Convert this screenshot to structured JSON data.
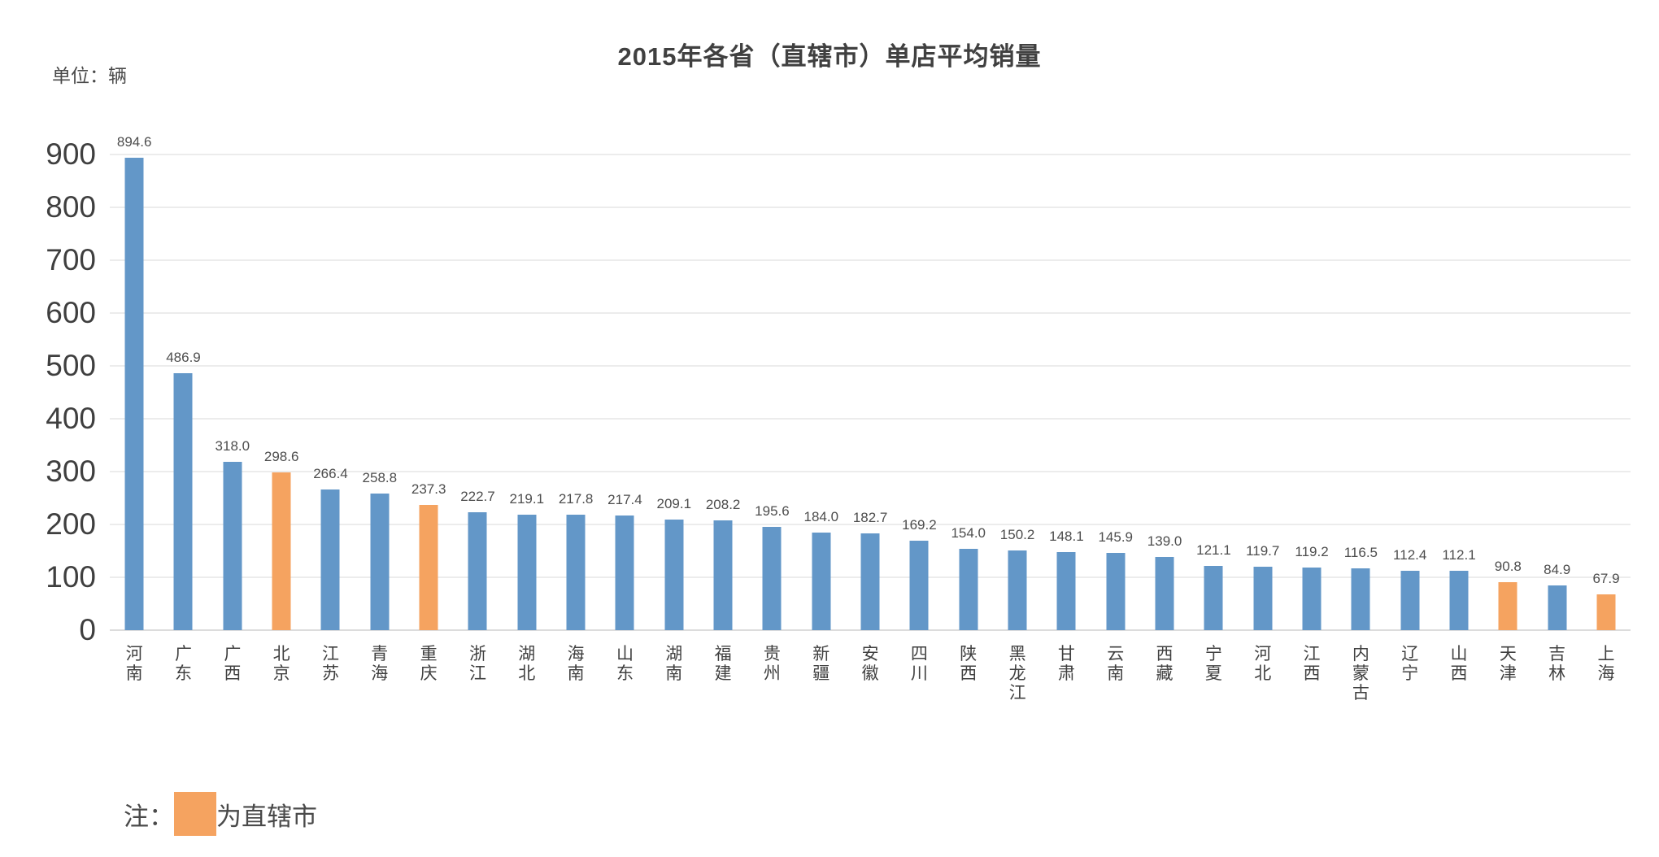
{
  "title": "2015年各省（直辖市）单店平均销量",
  "unit_label": "单位：辆",
  "note": {
    "prefix": "注：",
    "text": "为直辖市",
    "swatch_color": "#F5A360"
  },
  "colors": {
    "province_bar": "#6397C8",
    "municipality_bar": "#F5A360",
    "gridline": "#ececec",
    "baseline": "#dcdcdc",
    "text_dark": "#404040"
  },
  "chart_data": {
    "type": "bar",
    "title": "2015年各省（直辖市）单店平均销量",
    "xlabel": "",
    "ylabel": "单位：辆",
    "ylim": [
      0,
      900
    ],
    "y_ticks": [
      900,
      800,
      700,
      600,
      500,
      400,
      300,
      200,
      100,
      0
    ],
    "grid": true,
    "legend_position": "bottom-left",
    "categories": [
      "河南",
      "广东",
      "广西",
      "北京",
      "江苏",
      "青海",
      "重庆",
      "浙江",
      "湖北",
      "海南",
      "山东",
      "湖南",
      "福建",
      "贵州",
      "新疆",
      "安徽",
      "四川",
      "陕西",
      "黑龙江",
      "甘肃",
      "云南",
      "西藏",
      "宁夏",
      "河北",
      "江西",
      "内蒙古",
      "辽宁",
      "山西",
      "天津",
      "吉林",
      "上海"
    ],
    "values": [
      894.6,
      486.9,
      318.0,
      298.6,
      266.4,
      258.8,
      237.3,
      222.7,
      219.1,
      217.8,
      217.4,
      209.1,
      208.2,
      195.6,
      184.0,
      182.7,
      169.2,
      154.0,
      150.2,
      148.1,
      145.9,
      139.0,
      121.1,
      119.7,
      119.2,
      116.5,
      112.4,
      112.1,
      90.8,
      84.9,
      67.9
    ],
    "value_labels": [
      "894.6",
      "486.9",
      "318.0",
      "298.6",
      "266.4",
      "258.8",
      "237.3",
      "222.7",
      "219.1",
      "217.8",
      "217.4",
      "209.1",
      "208.2",
      "195.6",
      "184.0",
      "182.7",
      "169.2",
      "154.0",
      "150.2",
      "148.1",
      "145.9",
      "139.0",
      "121.1",
      "119.7",
      "119.2",
      "116.5",
      "112.4",
      "112.1",
      "90.8",
      "84.9",
      "67.9"
    ],
    "municipality_indices": [
      3,
      6,
      28,
      30
    ]
  }
}
